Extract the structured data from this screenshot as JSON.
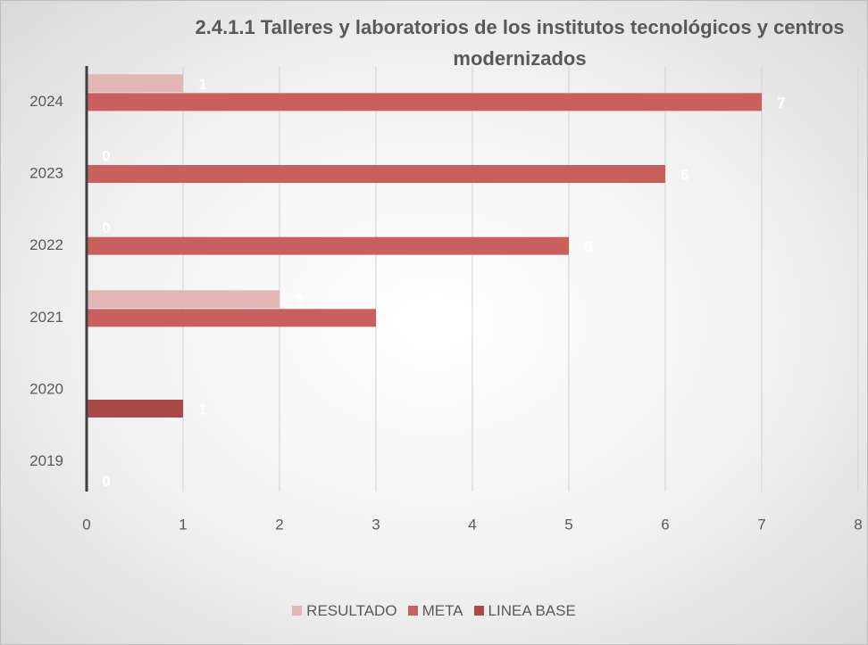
{
  "chart_data": {
    "type": "bar",
    "orientation": "horizontal",
    "title": "2.4.1.1 Talleres y laboratorios de los institutos tecnológicos y centros modernizados",
    "categories": [
      "2019",
      "2020",
      "2021",
      "2022",
      "2023",
      "2024"
    ],
    "series": [
      {
        "name": "RESULTADO",
        "color": "#e2b6b5",
        "values": [
          null,
          null,
          2,
          0,
          0,
          1
        ]
      },
      {
        "name": "META",
        "color": "#c9605e",
        "values": [
          null,
          null,
          3,
          5,
          6,
          7
        ]
      },
      {
        "name": "LINEA BASE",
        "color": "#a94a49",
        "values": [
          0,
          1,
          null,
          null,
          null,
          null
        ]
      }
    ],
    "xlim": [
      0,
      8
    ],
    "xticks": [
      0,
      1,
      2,
      3,
      4,
      5,
      6,
      7,
      8
    ],
    "grid": true,
    "legend": "bottom"
  }
}
